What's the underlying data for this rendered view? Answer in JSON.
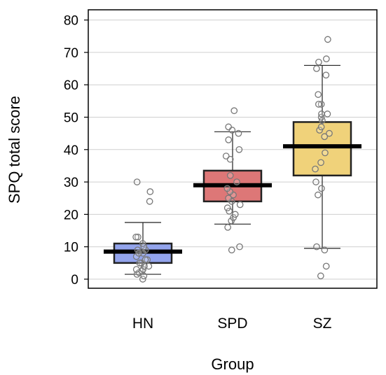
{
  "chart_data": {
    "type": "box",
    "xlabel": "Group",
    "ylabel": "SPQ total score",
    "ylim": [
      -3,
      84
    ],
    "yticks": [
      0,
      10,
      20,
      30,
      40,
      50,
      60,
      70,
      80
    ],
    "grid": "horizontal",
    "categories": [
      "HN",
      "SPD",
      "SZ"
    ],
    "colors": {
      "HN": "#93a4ec",
      "SPD": "#dd7777",
      "SZ": "#f0d27a"
    },
    "boxes": [
      {
        "group": "HN",
        "whisker_low": 1.5,
        "q1": 5,
        "median": 8.5,
        "q3": 11,
        "whisker_high": 17.5,
        "points": [
          0,
          1,
          1.5,
          2,
          2.5,
          3,
          3,
          4,
          4,
          5,
          5,
          6,
          6,
          7,
          8,
          8,
          9,
          9,
          10,
          11,
          13,
          13,
          24,
          27,
          30
        ]
      },
      {
        "group": "SPD",
        "whisker_low": 17,
        "q1": 24,
        "median": 29,
        "q3": 33.5,
        "whisker_high": 45.5,
        "points": [
          9,
          10,
          16,
          18,
          19,
          20,
          21,
          22,
          23,
          24,
          25,
          26,
          27,
          28,
          30,
          32,
          37,
          38,
          40,
          43,
          45,
          46,
          47,
          52
        ]
      },
      {
        "group": "SZ",
        "whisker_low": 9.5,
        "q1": 32,
        "median": 41,
        "q3": 48.5,
        "whisker_high": 66,
        "points": [
          1,
          4,
          9,
          10,
          26,
          28,
          30,
          34,
          36,
          39,
          44,
          45,
          46,
          47,
          49,
          50,
          51,
          51,
          54,
          54,
          57,
          63,
          65,
          67,
          68,
          74
        ]
      }
    ]
  }
}
